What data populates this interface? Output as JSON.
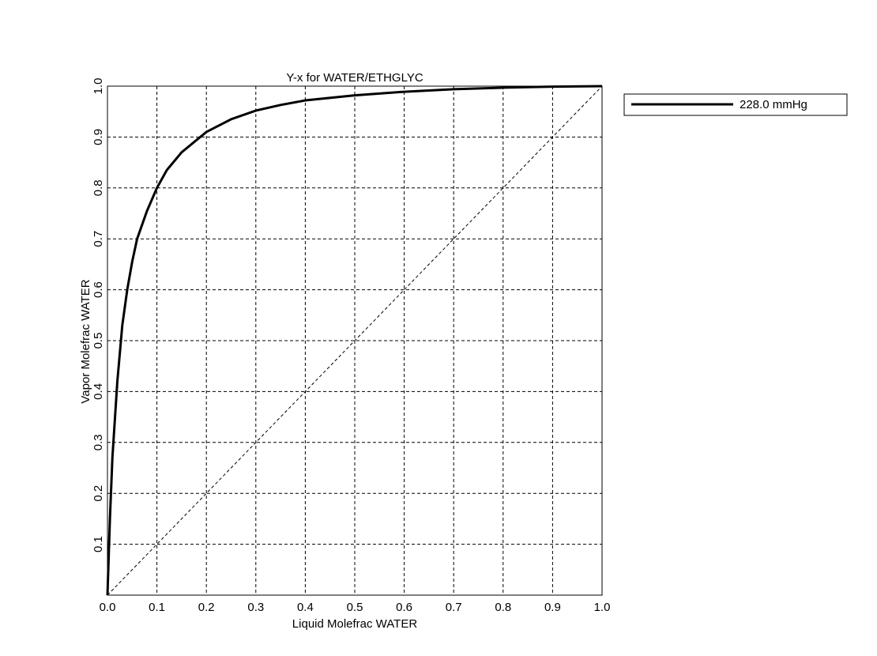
{
  "chart_data": {
    "type": "line",
    "title": "Y-x for WATER/ETHGLYC",
    "xlabel": "Liquid Molefrac WATER",
    "ylabel": "Vapor Molefrac WATER",
    "xlim": [
      0,
      1
    ],
    "ylim": [
      0,
      1
    ],
    "x_ticks": [
      "0.0",
      "0.1",
      "0.2",
      "0.3",
      "0.4",
      "0.5",
      "0.6",
      "0.7",
      "0.8",
      "0.9",
      "1.0"
    ],
    "y_ticks": [
      "0.1",
      "0.2",
      "0.3",
      "0.4",
      "0.5",
      "0.6",
      "0.7",
      "0.8",
      "0.9",
      "1.0"
    ],
    "grid": true,
    "legend_position": "right-outside-top",
    "series": [
      {
        "name": "228.0 mmHg",
        "color": "#000000",
        "x": [
          0,
          0.005,
          0.01,
          0.02,
          0.03,
          0.04,
          0.05,
          0.06,
          0.08,
          0.1,
          0.12,
          0.15,
          0.2,
          0.25,
          0.3,
          0.35,
          0.4,
          0.5,
          0.6,
          0.7,
          0.8,
          0.9,
          1.0
        ],
        "y": [
          0,
          0.15,
          0.27,
          0.42,
          0.53,
          0.6,
          0.655,
          0.7,
          0.755,
          0.8,
          0.835,
          0.87,
          0.91,
          0.935,
          0.952,
          0.963,
          0.972,
          0.982,
          0.989,
          0.994,
          0.997,
          0.999,
          1.0
        ]
      }
    ],
    "reference_line": {
      "x": [
        0,
        1
      ],
      "y": [
        0,
        1
      ],
      "style": "dashed"
    }
  }
}
